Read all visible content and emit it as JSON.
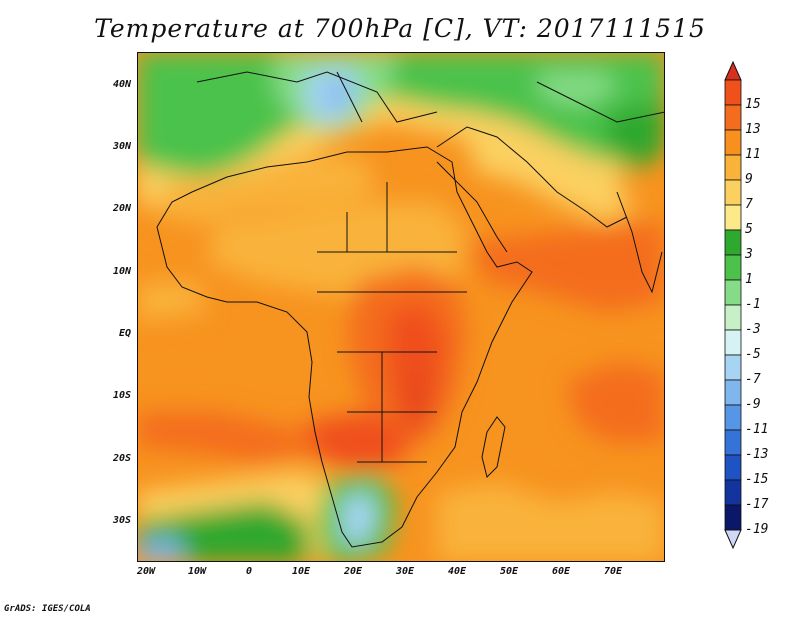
{
  "title": "Temperature at 700hPa [C], VT: 2017111515",
  "footer": "GrADS: IGES/COLA",
  "map": {
    "lat_labels": [
      "40N",
      "30N",
      "20N",
      "10N",
      "EQ",
      "10S",
      "20S",
      "30S"
    ],
    "lon_labels": [
      "20W",
      "10W",
      "0",
      "10E",
      "20E",
      "30E",
      "40E",
      "50E",
      "60E",
      "70E"
    ]
  },
  "colorbar": {
    "levels": [
      "15",
      "13",
      "11",
      "9",
      "7",
      "5",
      "3",
      "1",
      "-1",
      "-3",
      "-5",
      "-7",
      "-9",
      "-11",
      "-13",
      "-15",
      "-17",
      "-19"
    ],
    "colors": [
      "#d7301f",
      "#f0501a",
      "#f46d1f",
      "#f7901f",
      "#f9b23a",
      "#fbd060",
      "#fbe98a",
      "#2fa82f",
      "#4cc24c",
      "#86dc86",
      "#c7f0c7",
      "#d6f2f4",
      "#a8d4f4",
      "#7fb6ee",
      "#5597e6",
      "#3673d8",
      "#1f53c4",
      "#12349c",
      "#0b1768",
      "#d0d8f6"
    ]
  },
  "icons": {
    "top_arrow": "triangle-up-icon",
    "bottom_arrow": "triangle-down-icon"
  }
}
